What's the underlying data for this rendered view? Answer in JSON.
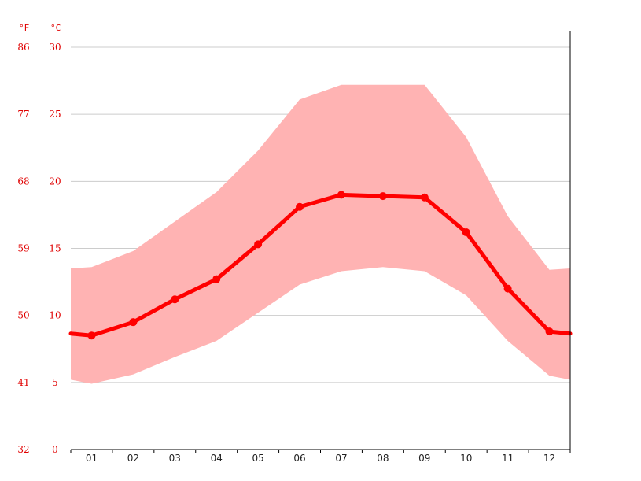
{
  "colors": {
    "line": "#ff0000",
    "band": "#ffb3b3",
    "grid": "#cccccc",
    "axis_text": "#e00000",
    "month_text": "#222222",
    "axis": "#000000"
  },
  "chart_data": {
    "type": "line",
    "title": "",
    "xlabel": "",
    "ylabel": "",
    "units": {
      "fahrenheit": "°F",
      "celsius": "°C"
    },
    "categories": [
      "01",
      "02",
      "03",
      "04",
      "05",
      "06",
      "07",
      "08",
      "09",
      "10",
      "11",
      "12"
    ],
    "ylim": [
      0,
      30
    ],
    "y_ticks_c": [
      "0",
      "5",
      "10",
      "15",
      "20",
      "25",
      "30"
    ],
    "y_ticks_f": [
      "32",
      "41",
      "50",
      "59",
      "68",
      "77",
      "86"
    ],
    "grid": true,
    "legend": "none",
    "series": [
      {
        "values": [
          8.5,
          9.5,
          11.2,
          12.7,
          15.3,
          18.1,
          19.0,
          18.9,
          18.8,
          16.2,
          12.0,
          8.8
        ]
      }
    ],
    "band": {
      "upper": [
        13.6,
        14.8,
        17.0,
        19.2,
        22.3,
        26.1,
        27.2,
        27.2,
        27.2,
        23.3,
        17.4,
        13.4
      ],
      "lower": [
        4.9,
        5.6,
        6.9,
        8.1,
        10.2,
        12.3,
        13.3,
        13.6,
        13.3,
        11.5,
        8.1,
        5.5
      ]
    }
  }
}
